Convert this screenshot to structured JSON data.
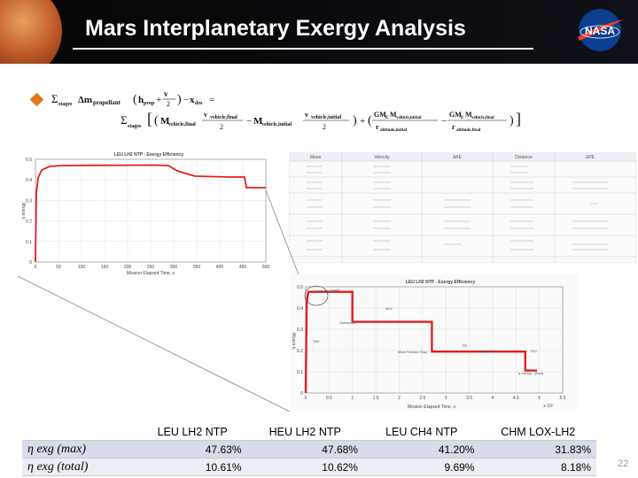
{
  "slide": {
    "title": "Mars Interplanetary Exergy Analysis",
    "page_number": "22",
    "logo_text": "NASA"
  },
  "equation": {
    "symbol_sum": "Σ",
    "stages": "stages",
    "delta_m_propellant": "Δm",
    "propellant_sub": "propellant",
    "h_prop": "h",
    "prop_sub": "prop",
    "v2": "v",
    "x_des": "x",
    "des_sub": "des",
    "m_vehicle_final": "M",
    "vehicle_final_sub": "vehicle,final",
    "vehicle_initial_sub": "vehicle,initial",
    "gme": "GM",
    "e_sub": "E",
    "altitude_initial_sub": "altitude,initial",
    "altitude_final_sub": "altitude,final",
    "r": "r",
    "two": "2",
    "eq": "=",
    "minus": "−",
    "plus": "+"
  },
  "small_chart": {
    "title": "LEU LH2 NTP - Exergy Efficiency",
    "xlabel": "Mission Elapsed Time, s",
    "ylabel": "η exergy",
    "xticks": [
      "0",
      "50",
      "100",
      "150",
      "200",
      "250",
      "300",
      "350",
      "400",
      "450",
      "500"
    ],
    "yticks": [
      "0",
      "0.1",
      "0.2",
      "0.3",
      "0.4",
      "0.5"
    ]
  },
  "big_chart": {
    "title": "LEU LH2 NTP - Exergy Efficiency",
    "xlabel": "Mission Elapsed Time, s",
    "ylabel": "η exergy",
    "x_exponent": "x 10⁷",
    "xticks": [
      "0",
      "0.5",
      "1",
      "1.5",
      "2",
      "2.5",
      "3",
      "3.5",
      "4",
      "4.5",
      "5",
      "5.5"
    ],
    "yticks": [
      "0",
      "0.1",
      "0.2",
      "0.3",
      "0.4",
      "0.5"
    ],
    "annotations": {
      "max": "(max)",
      "eta_exergy": "η exergy",
      "moi": "MOI",
      "outbound": "Outbound",
      "tmi": "TMI",
      "tei": "TEI",
      "mars_surface_stay": "Mars Surface Stay",
      "inbound": "Inbound",
      "eci": "ECI",
      "final": "(final)"
    }
  },
  "chart_data": {
    "type": "line",
    "title": "LEU LH2 NTP - Exergy Efficiency",
    "xlabel": "Mission Elapsed Time, s",
    "ylabel": "η exergy",
    "x_exponent": "x 10⁷",
    "xlim": [
      0,
      5.5
    ],
    "ylim": [
      0,
      0.5
    ],
    "series": [
      {
        "x": [
          0,
          0.02,
          0.05,
          0.06,
          1.0,
          1.0,
          2.7,
          2.7,
          4.7,
          4.7,
          4.95
        ],
        "y": [
          0.0,
          0.42,
          0.47,
          0.4763,
          0.4763,
          0.335,
          0.335,
          0.195,
          0.195,
          0.106,
          0.106
        ]
      }
    ],
    "color": "#e02020",
    "grid": true
  },
  "comparison_table": {
    "table_title_cols": [
      "Mass",
      "Velocity",
      "ΔKE",
      "Distance",
      "ΔPE"
    ],
    "columns": [
      "",
      "LEU LH2 NTP",
      "HEU LH2 NTP",
      "LEU CH4 NTP",
      "CHM LOX-LH2"
    ],
    "rows": [
      {
        "label": "η exg (max)",
        "values": [
          "47.63%",
          "47.68%",
          "41.20%",
          "31.83%"
        ]
      },
      {
        "label": "η exg (total)",
        "values": [
          "10.61%",
          "10.62%",
          "9.69%",
          "8.18%"
        ]
      }
    ]
  },
  "colors": {
    "header_bg": "#060606",
    "bullet": "#e3781a",
    "line": "#e02020",
    "row1": "#d7dbea",
    "row2": "#eceef5",
    "nasa_blue": "#0b3d91",
    "nasa_red": "#fc3d21"
  }
}
